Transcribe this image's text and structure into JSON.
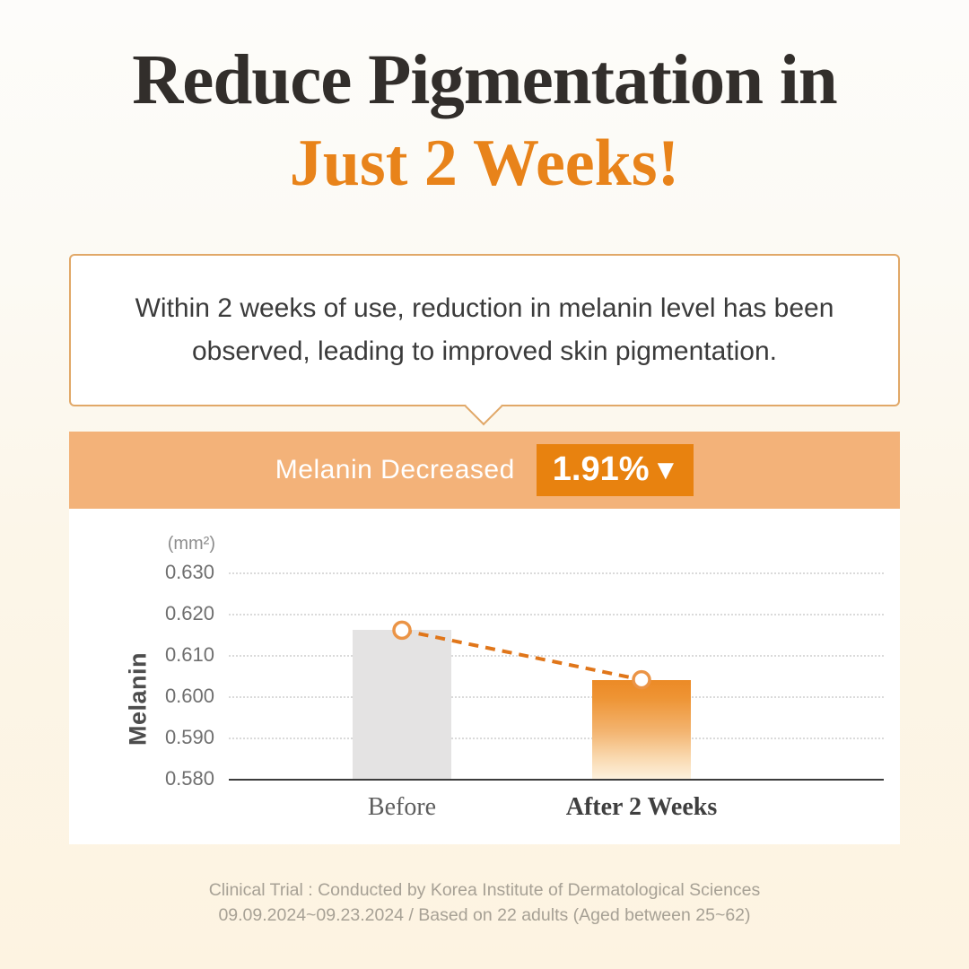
{
  "header": {
    "title_line1": "Reduce Pigmentation in",
    "title_line2": "Just 2 Weeks!"
  },
  "callout": {
    "lines": [
      "Within 2 weeks of use, reduction in melanin level has been",
      "observed, leading to improved skin pigmentation."
    ]
  },
  "banner": {
    "label": "Melanin Decreased",
    "badge_value": "1.91%",
    "badge_arrow": "▼"
  },
  "chart_data": {
    "type": "bar",
    "categories": [
      "Before",
      "After 2 Weeks"
    ],
    "values": [
      0.616,
      0.604
    ],
    "ylabel": "Melanin",
    "unit": "(mm²)",
    "ylim": [
      0.58,
      0.63
    ],
    "yticks": [
      0.63,
      0.62,
      0.61,
      0.6,
      0.59,
      0.58
    ],
    "ytick_decimals": 3,
    "grid": true,
    "legend": "none",
    "connector": {
      "style": "dashed",
      "color": "#e0761a",
      "marker": "open-circle"
    },
    "bar_colors": {
      "before": "#e4e3e3",
      "after_top": "#ec8a26",
      "after_bottom": "#fdf0dd"
    }
  },
  "footer": {
    "lines": [
      "Clinical Trial : Conducted by Korea Institute of Dermatological Sciences",
      "09.09.2024~09.23.2024 / Based on 22 adults (Aged between 25~62)"
    ]
  },
  "colors": {
    "title_dark": "#322e2b",
    "title_orange": "#e8831a",
    "banner_orange": "#f3b279",
    "badge_orange": "#e8820f",
    "callout_border": "#e1a868"
  }
}
